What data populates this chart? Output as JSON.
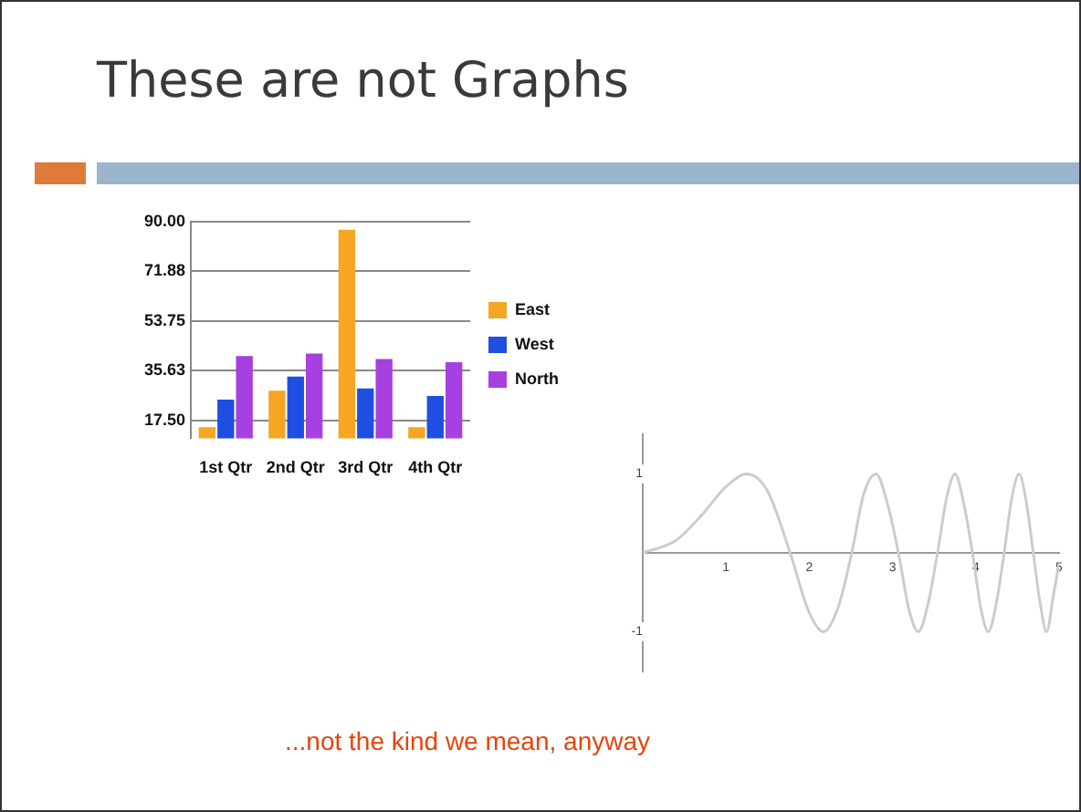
{
  "chart_data": [
    {
      "type": "bar",
      "title": "These are not Graphs",
      "annotations": [
        "...not the kind we mean, anyway"
      ],
      "categories": [
        "1st Qtr",
        "2nd Qtr",
        "3rd Qtr",
        "4th Qtr"
      ],
      "series": [
        {
          "name": "East",
          "color": "#f5a623",
          "values": [
            15,
            28.3,
            87,
            15
          ]
        },
        {
          "name": "West",
          "color": "#1f4fe0",
          "values": [
            25.1,
            33.5,
            29.2,
            26.4
          ]
        },
        {
          "name": "North",
          "color": "#a640e0",
          "values": [
            41,
            41.9,
            39.9,
            38.7
          ]
        }
      ],
      "ylim": [
        11,
        90
      ],
      "yticks": [
        {
          "value": 17.5,
          "label": "17.50"
        },
        {
          "value": 35.63,
          "label": "35.63"
        },
        {
          "value": 53.75,
          "label": "53.75"
        },
        {
          "value": 71.88,
          "label": "71.88"
        },
        {
          "value": 90,
          "label": "90.00"
        }
      ],
      "grid": "y",
      "legend": "right"
    },
    {
      "type": "line",
      "x": [
        0,
        0.4,
        0.7,
        1.0,
        1.25,
        1.5,
        1.77,
        2.0,
        2.17,
        2.35,
        2.51,
        2.65,
        2.8,
        2.95,
        3.07,
        3.2,
        3.31,
        3.43,
        3.54,
        3.65,
        3.75,
        3.86,
        3.96,
        4.06,
        4.15,
        4.25,
        4.34,
        4.43,
        4.52,
        4.61,
        4.69,
        4.77,
        4.85,
        4.93,
        5.0
      ],
      "series": [
        {
          "color": "#cccccc",
          "values": [
            0,
            0.16,
            0.47,
            0.84,
            1,
            0.78,
            0,
            -0.76,
            -1,
            -0.68,
            0,
            0.73,
            1,
            0.58,
            0,
            -0.73,
            -1,
            -0.63,
            0,
            0.7,
            1,
            0.6,
            0,
            -0.7,
            -1,
            -0.62,
            0,
            0.68,
            1,
            0.62,
            0,
            -0.62,
            -1,
            -0.55,
            -0.13
          ]
        }
      ],
      "xlim": [
        0,
        5
      ],
      "xticks": [
        1,
        2,
        3,
        4,
        5
      ],
      "ylim": [
        -1.5,
        1.5
      ],
      "yticks": [
        -1,
        1
      ],
      "grid": false,
      "legend": false,
      "marker": "none",
      "line_style": "solid"
    }
  ]
}
